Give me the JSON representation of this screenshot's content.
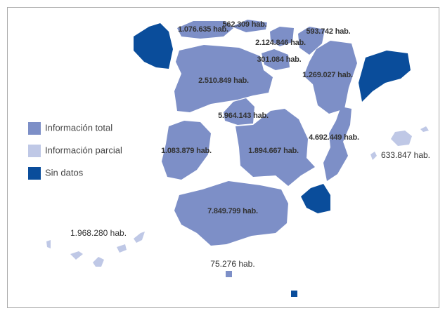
{
  "legend": [
    {
      "label": "Información total",
      "color": "#7d8fc7"
    },
    {
      "label": "Información parcial",
      "color": "#bfc8e6"
    },
    {
      "label": "Sin datos",
      "color": "#0a4d9b"
    }
  ],
  "regions": [
    {
      "label": "1.076.635 hab."
    },
    {
      "label": "562.309 hab."
    },
    {
      "label": "2.124.846 hab."
    },
    {
      "label": "593.742 hab."
    },
    {
      "label": "301.084 hab."
    },
    {
      "label": "1.269.027 hab."
    },
    {
      "label": "2.510.849 hab."
    },
    {
      "label": "5.964.143 hab."
    },
    {
      "label": "4.692.449 hab."
    },
    {
      "label": "1.083.879 hab."
    },
    {
      "label": "1.894.667 hab."
    },
    {
      "label": "7.849.799 hab."
    },
    {
      "label": "633.847 hab."
    },
    {
      "label": "1.968.280 hab."
    },
    {
      "label": "75.276 hab."
    }
  ]
}
